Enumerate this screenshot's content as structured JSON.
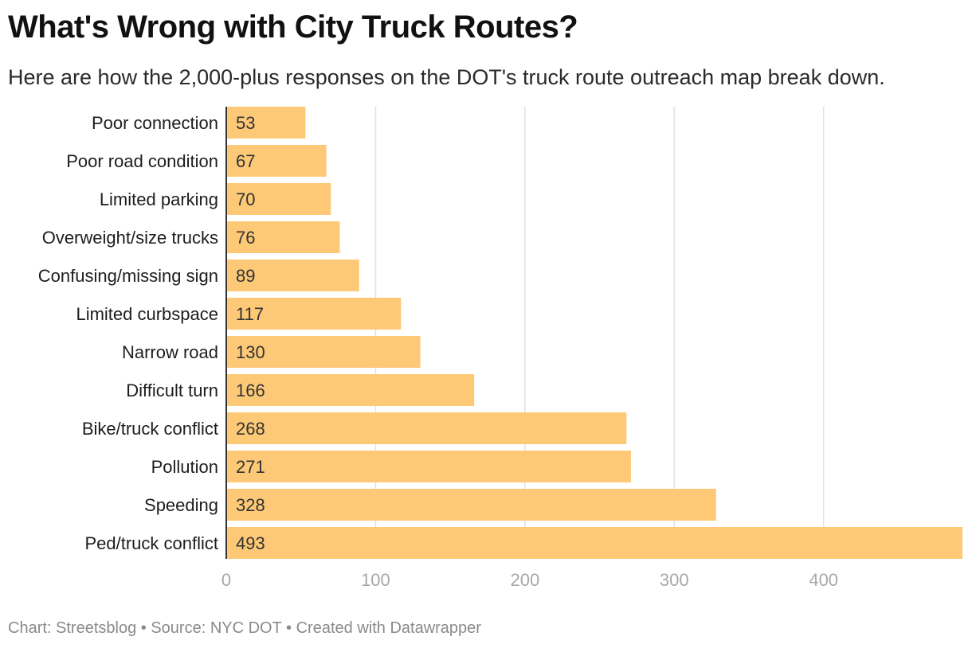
{
  "header": {
    "title": "What's Wrong with City Truck Routes?",
    "subtitle": "Here are how the 2,000-plus responses on the DOT's truck route outreach map break down."
  },
  "footer": {
    "chart_credit": "Chart: Streetsblog",
    "source": "Source: NYC DOT",
    "created_with": "Created with Datawrapper",
    "separator": "•"
  },
  "chart_data": {
    "type": "bar",
    "orientation": "horizontal",
    "title": "What's Wrong with City Truck Routes?",
    "subtitle": "Here are how the 2,000-plus responses on the DOT's truck route outreach map break down.",
    "categories": [
      "Poor connection",
      "Poor road condition",
      "Limited parking",
      "Overweight/size trucks",
      "Confusing/missing sign",
      "Limited curbspace",
      "Narrow road",
      "Difficult turn",
      "Bike/truck conflict",
      "Pollution",
      "Speeding",
      "Ped/truck conflict"
    ],
    "values": [
      53,
      67,
      70,
      76,
      89,
      117,
      130,
      166,
      268,
      271,
      328,
      493
    ],
    "xlim": [
      0,
      493
    ],
    "xticks": [
      0,
      100,
      200,
      300,
      400
    ],
    "xlabel": "",
    "ylabel": "",
    "grid": true,
    "legend": "none",
    "data_labels": "inside-left"
  },
  "colors": {
    "bar": "#fdc977",
    "grid": "#e2e2e2",
    "axis": "#333333",
    "tick_label": "#a8a8a8",
    "category_label": "#1d1d1d",
    "value_label": "#333333"
  }
}
